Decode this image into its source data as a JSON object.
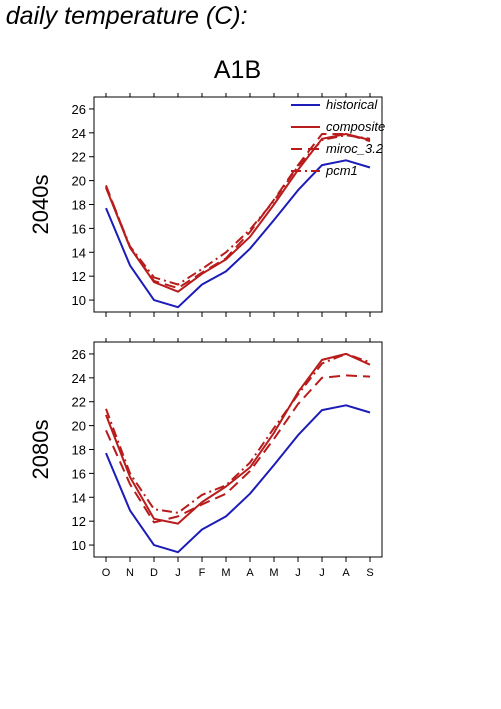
{
  "header_text": "m daily temperature (C):",
  "scenario": "A1B",
  "colors": {
    "historical": "#1c1cb8",
    "scenario": "#b81c1c"
  },
  "chart_data": {
    "type": "line",
    "categories": [
      "O",
      "N",
      "D",
      "J",
      "F",
      "M",
      "A",
      "M",
      "J",
      "J",
      "A",
      "S"
    ],
    "ylim": [
      9,
      27
    ],
    "yticks": [
      10,
      12,
      14,
      16,
      18,
      20,
      22,
      24,
      26
    ],
    "legend_position": "top-right",
    "panels": [
      {
        "row_label": "2040s",
        "series": [
          {
            "name": "historical",
            "style": "solid",
            "color": "#1c1cb8",
            "values": [
              17.7,
              12.9,
              10.0,
              9.4,
              11.3,
              12.4,
              14.3,
              16.7,
              19.2,
              21.3,
              21.7,
              21.1
            ]
          },
          {
            "name": "composite",
            "style": "solid",
            "color": "#b81c1c",
            "values": [
              19.4,
              14.4,
              11.5,
              10.7,
              12.2,
              13.4,
              15.3,
              18.0,
              20.9,
              23.5,
              23.9,
              23.4
            ]
          },
          {
            "name": "miroc_3.2",
            "style": "dash",
            "color": "#b81c1c",
            "values": [
              19.6,
              14.4,
              11.6,
              11.0,
              12.3,
              13.5,
              15.7,
              18.4,
              21.3,
              23.9,
              23.9,
              23.3
            ]
          },
          {
            "name": "pcm1",
            "style": "dashdot",
            "color": "#b81c1c",
            "values": [
              19.5,
              14.5,
              11.9,
              11.3,
              12.6,
              14.0,
              15.9,
              18.3,
              21.2,
              23.4,
              23.8,
              23.5
            ]
          }
        ]
      },
      {
        "row_label": "2080s",
        "series": [
          {
            "name": "historical",
            "style": "solid",
            "color": "#1c1cb8",
            "values": [
              17.7,
              12.9,
              10.0,
              9.4,
              11.3,
              12.4,
              14.3,
              16.7,
              19.2,
              21.3,
              21.7,
              21.1
            ]
          },
          {
            "name": "composite",
            "style": "solid",
            "color": "#b81c1c",
            "values": [
              20.9,
              15.7,
              12.2,
              11.8,
              13.6,
              14.9,
              16.5,
              19.4,
              22.8,
              25.5,
              26.0,
              25.1
            ]
          },
          {
            "name": "miroc_3.2",
            "style": "dash",
            "color": "#b81c1c",
            "values": [
              19.6,
              15.1,
              11.9,
              12.4,
              13.4,
              14.3,
              16.2,
              18.9,
              21.8,
              24.0,
              24.2,
              24.1
            ]
          },
          {
            "name": "pcm1",
            "style": "dashdot",
            "color": "#b81c1c",
            "values": [
              21.4,
              16.0,
              13.0,
              12.7,
              14.2,
              15.0,
              16.9,
              19.8,
              22.6,
              25.2,
              26.0,
              25.3
            ]
          }
        ]
      }
    ]
  }
}
